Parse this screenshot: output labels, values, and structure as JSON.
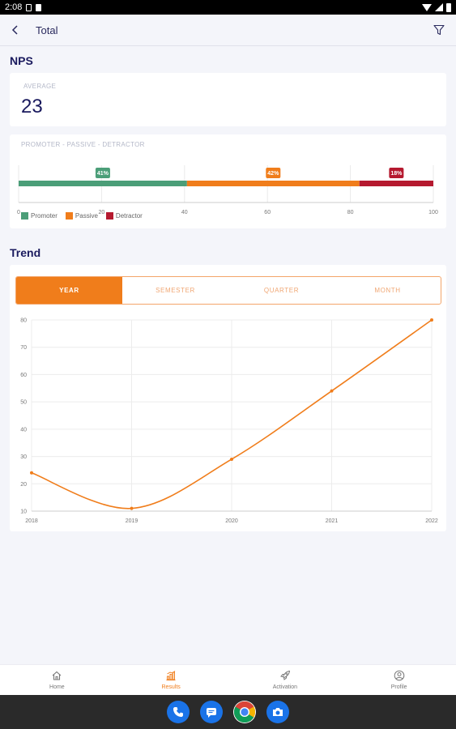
{
  "status_bar": {
    "time": "2:08"
  },
  "app_bar": {
    "title": "Total"
  },
  "nps": {
    "title": "NPS",
    "average_label": "AVERAGE",
    "average_value": "23",
    "breakdown_label": "PROMOTER - PASSIVE - DETRACTOR"
  },
  "trend": {
    "title": "Trend",
    "tabs": [
      {
        "label": "YEAR",
        "active": true
      },
      {
        "label": "SEMESTER",
        "active": false
      },
      {
        "label": "QUARTER",
        "active": false
      },
      {
        "label": "MONTH",
        "active": false
      }
    ]
  },
  "bottom_nav": {
    "items": [
      {
        "label": "Home",
        "icon": "home-icon"
      },
      {
        "label": "Results",
        "icon": "bar-chart-icon",
        "active": true
      },
      {
        "label": "Activation",
        "icon": "rocket-icon"
      },
      {
        "label": "Profile",
        "icon": "user-icon"
      }
    ]
  },
  "dock": {
    "icons": [
      "phone-icon",
      "messages-icon",
      "chrome-icon",
      "camera-icon"
    ]
  },
  "colors": {
    "promoter": "#4b9e78",
    "passive": "#f07d1b",
    "detractor": "#b5192f",
    "accent": "#f07d1b",
    "navy": "#1a1a5e"
  },
  "chart_data": [
    {
      "type": "bar",
      "orientation": "horizontal-stacked",
      "series": [
        {
          "name": "Promoter",
          "value": 41,
          "label": "41%"
        },
        {
          "name": "Passive",
          "value": 42,
          "label": "42%"
        },
        {
          "name": "Detractor",
          "value": 18,
          "label": "18%"
        }
      ],
      "xlim": [
        0,
        100
      ],
      "x_ticks": [
        0,
        20,
        40,
        60,
        80,
        100
      ],
      "legend": "bottom-left"
    },
    {
      "type": "line",
      "x": [
        "2018",
        "2019",
        "2020",
        "2021",
        "2022"
      ],
      "series": [
        {
          "values": [
            24,
            11,
            29,
            54,
            80
          ]
        }
      ],
      "ylim": [
        10,
        80
      ],
      "y_ticks": [
        10,
        20,
        30,
        40,
        50,
        60,
        70,
        80
      ],
      "grid": true
    }
  ]
}
